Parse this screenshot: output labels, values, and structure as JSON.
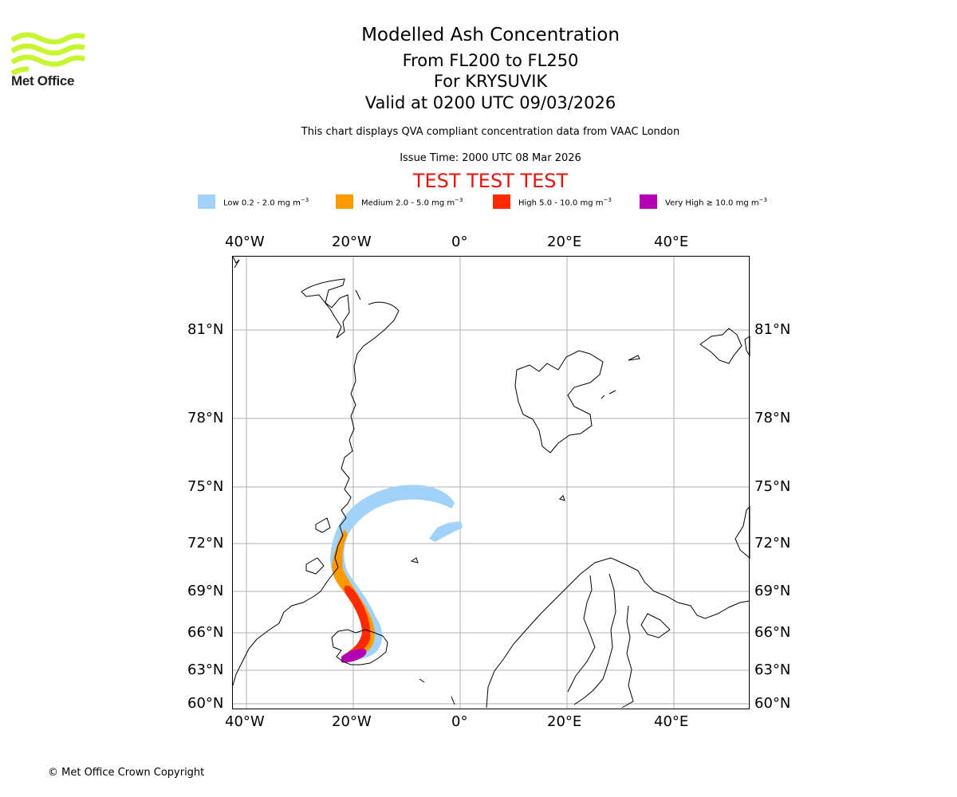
{
  "brand": {
    "name": "Met Office",
    "logo_color": "#c8f531"
  },
  "header": {
    "title": "Modelled Ash Concentration",
    "levels": "From FL200 to FL250",
    "volcano": "For KRYSUVIK",
    "valid": "Valid at 0200 UTC 09/03/2026",
    "description": "This chart displays QVA compliant concentration data from VAAC London",
    "issue_time": "Issue Time: 2000 UTC 08 Mar 2026",
    "test_banner": "TEST TEST TEST",
    "test_color": "#e8120c"
  },
  "legend": [
    {
      "label": "Low 0.2 - 2.0 mg m",
      "unit_sup": "−3",
      "color": "#a0d2fa"
    },
    {
      "label": "Medium 2.0 - 5.0 mg m",
      "unit_sup": "−3",
      "color": "#ff9900"
    },
    {
      "label": "High 5.0 - 10.0 mg m",
      "unit_sup": "−3",
      "color": "#ff2a00"
    },
    {
      "label": "Very High ≥ 10.0 mg m",
      "unit_sup": "−3",
      "color": "#b400b4"
    }
  ],
  "map": {
    "lon_ticks": [
      "40°W",
      "20°W",
      "0°",
      "20°E",
      "40°E"
    ],
    "lat_ticks": [
      "81°N",
      "78°N",
      "75°N",
      "72°N",
      "69°N",
      "66°N",
      "63°N",
      "60°N"
    ],
    "lon_range_deg": [
      -42.5,
      54
    ],
    "lat_range_deg": [
      59.5,
      83.5
    ]
  },
  "footer": {
    "copyright": "© Met Office Crown Copyright"
  }
}
